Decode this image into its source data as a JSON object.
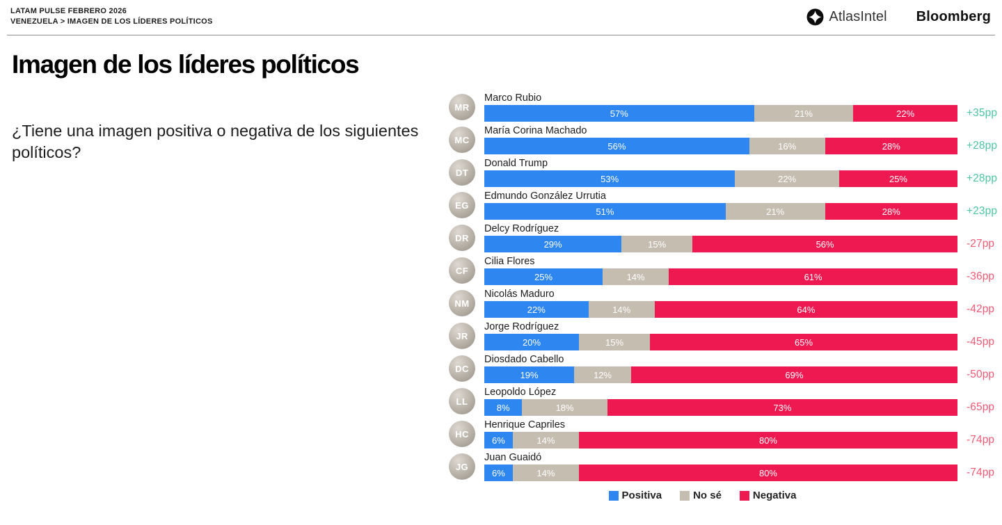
{
  "header": {
    "kicker_line1": "LATAM PULSE FEBRERO 2026",
    "kicker_line2": "VENEZUELA > IMAGEN DE LOS LÍDERES POLÍTICOS",
    "logos": {
      "atlasintel": "AtlasIntel",
      "bloomberg": "Bloomberg"
    }
  },
  "main": {
    "title": "Imagen de los líderes políticos",
    "question": "¿Tiene una imagen positiva o negativa de los siguientes políticos?"
  },
  "colors": {
    "positive": "#2e86f0",
    "no_se": "#c6bdb1",
    "negative": "#ee1951",
    "net_positive": "#4fc5a0",
    "net_negative": "#ee5a74"
  },
  "chart_data": {
    "type": "bar",
    "stacked": true,
    "orientation": "horizontal",
    "unit": "%",
    "xlim": [
      0,
      100
    ],
    "title": "Imagen de los líderes políticos",
    "legend": [
      "Positiva",
      "No sé",
      "Negativa"
    ],
    "legend_position": "bottom-center",
    "series_names": [
      "Positiva",
      "No sé",
      "Negativa"
    ],
    "rows": [
      {
        "name": "Marco Rubio",
        "initials": "MR",
        "positiva": 57,
        "no_se": 21,
        "negativa": 22,
        "net": "+35pp"
      },
      {
        "name": "María Corina Machado",
        "initials": "MC",
        "positiva": 56,
        "no_se": 16,
        "negativa": 28,
        "net": "+28pp"
      },
      {
        "name": "Donald Trump",
        "initials": "DT",
        "positiva": 53,
        "no_se": 22,
        "negativa": 25,
        "net": "+28pp"
      },
      {
        "name": "Edmundo González Urrutia",
        "initials": "EG",
        "positiva": 51,
        "no_se": 21,
        "negativa": 28,
        "net": "+23pp"
      },
      {
        "name": "Delcy Rodríguez",
        "initials": "DR",
        "positiva": 29,
        "no_se": 15,
        "negativa": 56,
        "net": "-27pp"
      },
      {
        "name": "Cilia Flores",
        "initials": "CF",
        "positiva": 25,
        "no_se": 14,
        "negativa": 61,
        "net": "-36pp"
      },
      {
        "name": "Nicolás Maduro",
        "initials": "NM",
        "positiva": 22,
        "no_se": 14,
        "negativa": 64,
        "net": "-42pp"
      },
      {
        "name": "Jorge Rodríguez",
        "initials": "JR",
        "positiva": 20,
        "no_se": 15,
        "negativa": 65,
        "net": "-45pp"
      },
      {
        "name": "Diosdado Cabello",
        "initials": "DC",
        "positiva": 19,
        "no_se": 12,
        "negativa": 69,
        "net": "-50pp"
      },
      {
        "name": "Leopoldo López",
        "initials": "LL",
        "positiva": 8,
        "no_se": 18,
        "negativa": 73,
        "net": "-65pp"
      },
      {
        "name": "Henrique Capriles",
        "initials": "HC",
        "positiva": 6,
        "no_se": 14,
        "negativa": 80,
        "net": "-74pp"
      },
      {
        "name": "Juan Guaidó",
        "initials": "JG",
        "positiva": 6,
        "no_se": 14,
        "negativa": 80,
        "net": "-74pp"
      }
    ]
  }
}
